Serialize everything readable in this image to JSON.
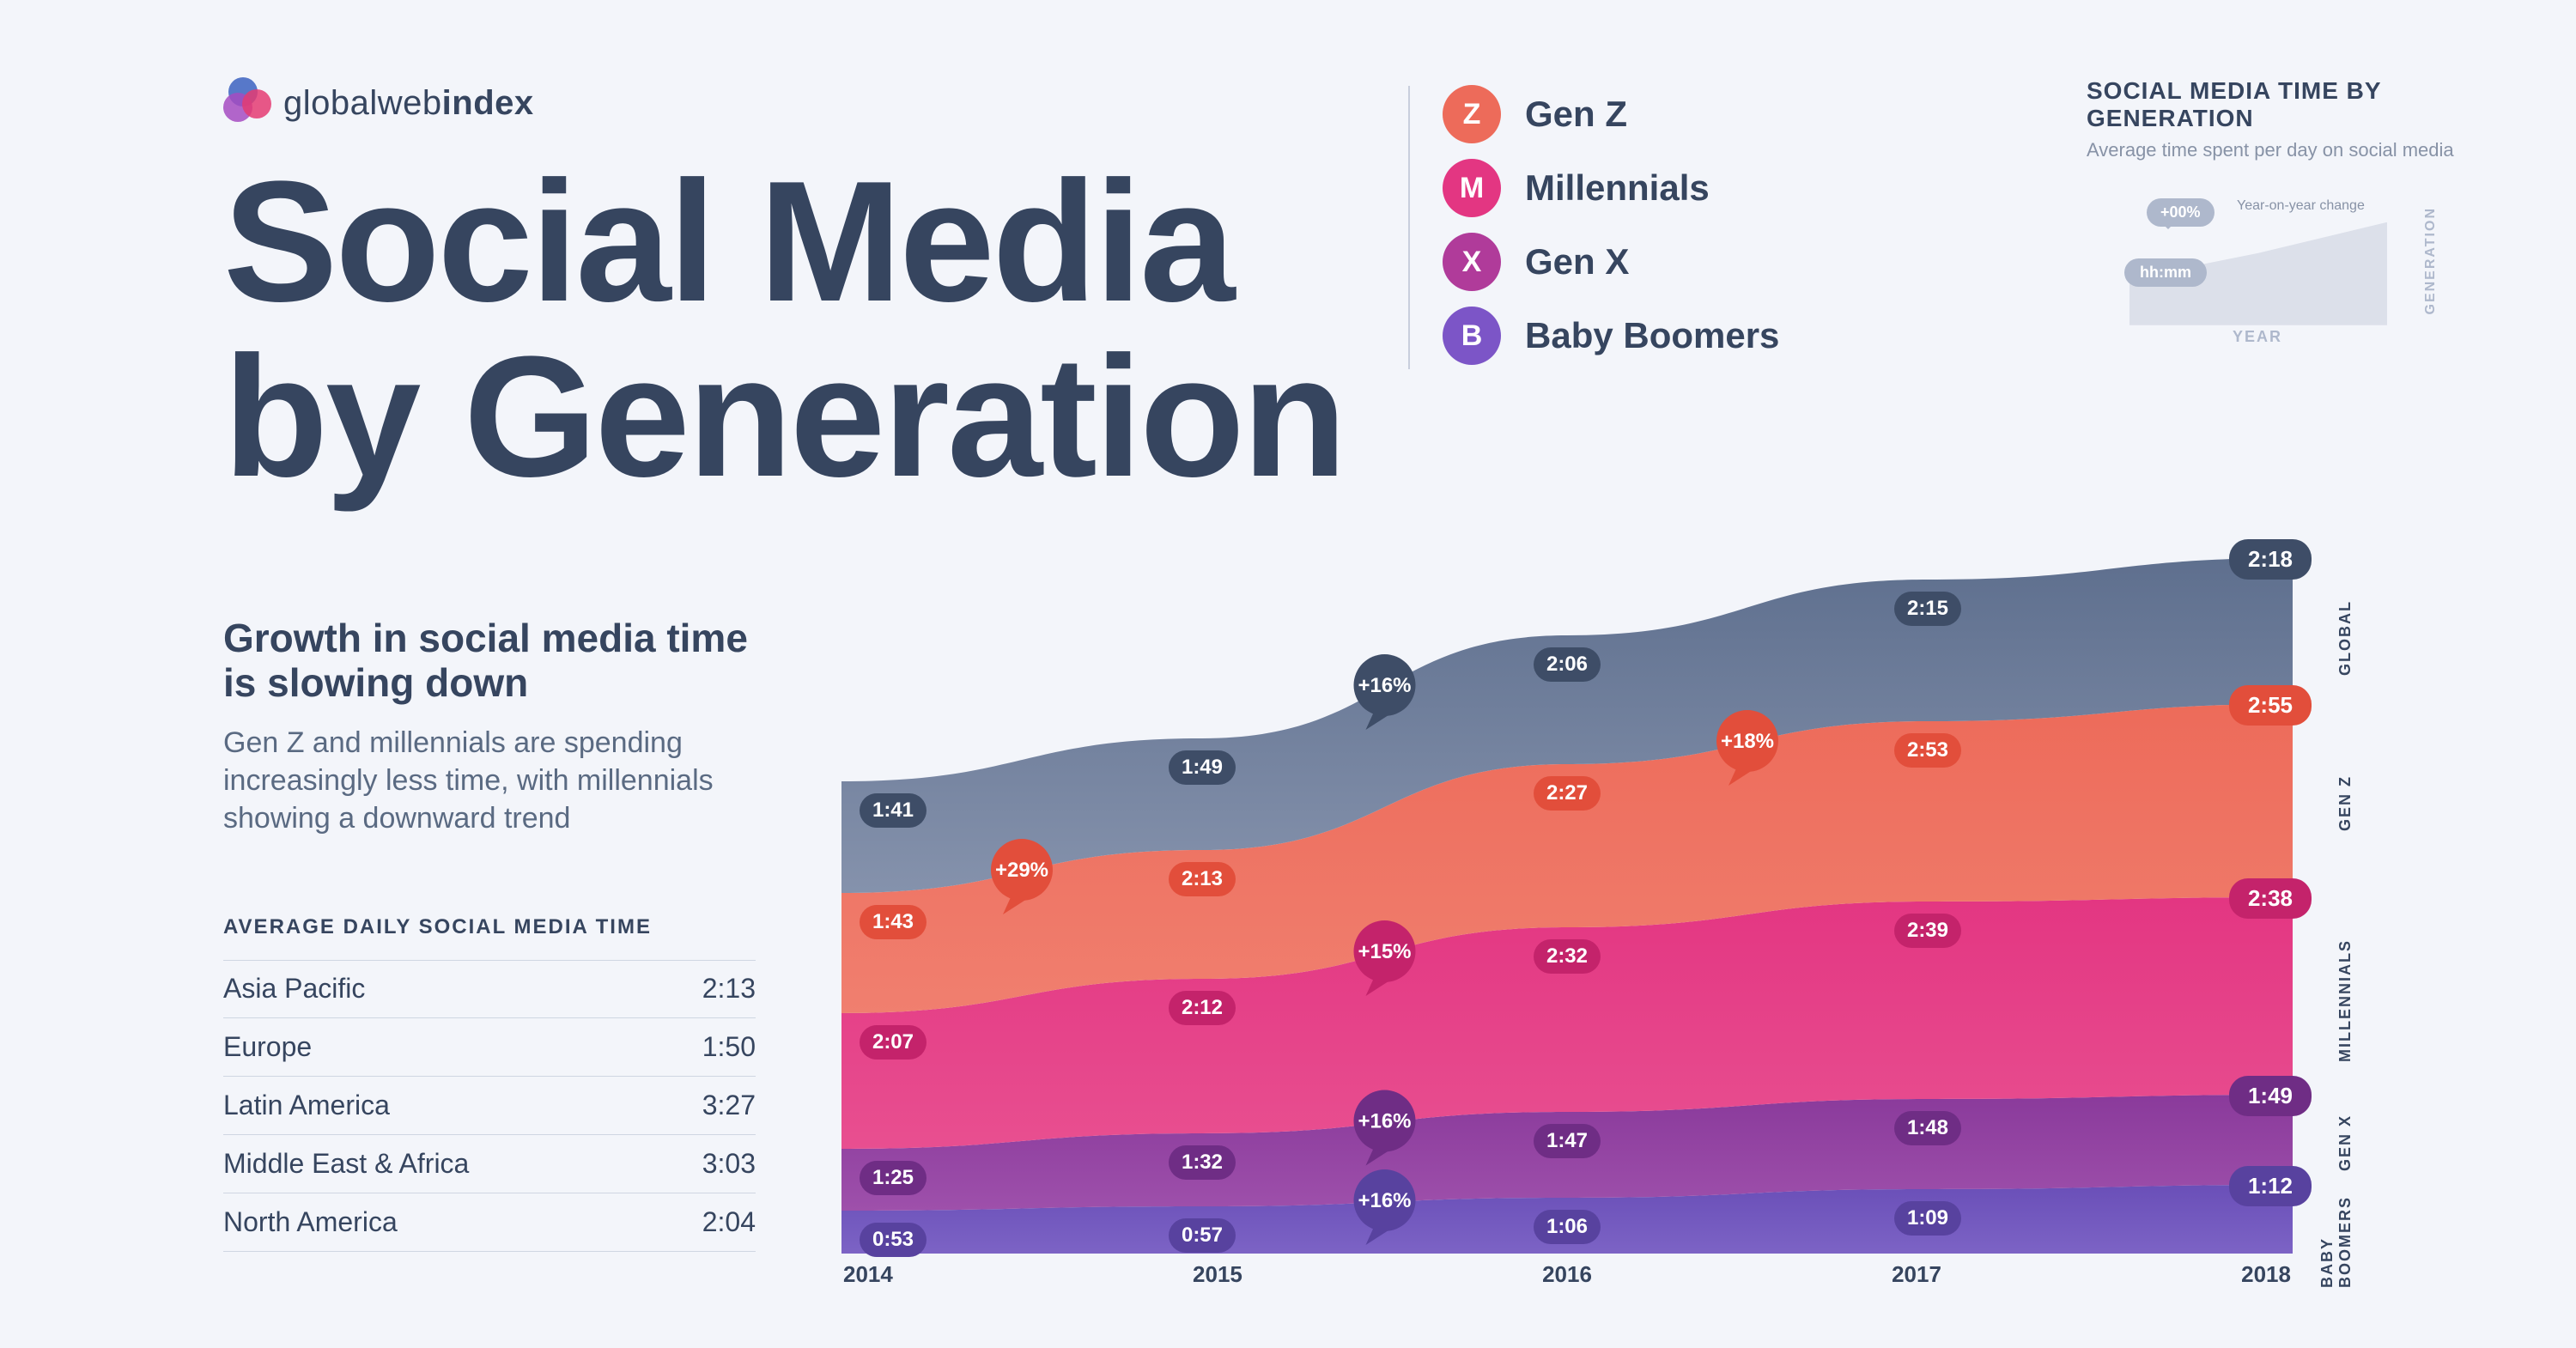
{
  "brand": {
    "name_light": "globalweb",
    "name_bold": "index",
    "dots": [
      "#3b62c0",
      "#a44bc1",
      "#e43b72"
    ]
  },
  "title_l1": "Social Media",
  "title_l2": "by Generation",
  "subhead": {
    "heading": "Growth in social media time is slowing down",
    "body": "Gen Z and millennials are spending increasingly less time, with millennials showing a downward trend"
  },
  "table": {
    "title": "AVERAGE DAILY SOCIAL MEDIA TIME",
    "rows": [
      {
        "region": "Asia Pacific",
        "time": "2:13"
      },
      {
        "region": "Europe",
        "time": "1:50"
      },
      {
        "region": "Latin America",
        "time": "3:27"
      },
      {
        "region": "Middle East & Africa",
        "time": "3:03"
      },
      {
        "region": "North America",
        "time": "2:04"
      }
    ]
  },
  "legend": {
    "items": [
      {
        "letter": "Z",
        "label": "Gen Z",
        "color": "#ed6b5a"
      },
      {
        "letter": "M",
        "label": "Millennials",
        "color": "#e33682"
      },
      {
        "letter": "X",
        "label": "Gen X",
        "color": "#b03b9a"
      },
      {
        "letter": "B",
        "label": "Baby Boomers",
        "color": "#7c55c7"
      }
    ]
  },
  "key": {
    "title": "SOCIAL MEDIA TIME BY GENERATION",
    "subtitle": "Average time spent per day on social media",
    "bubble": "+00%",
    "bubble_note": "Year-on-year change",
    "pill": "hh:mm",
    "year": "YEAR",
    "gen": "GENERATION"
  },
  "chart": {
    "type": "stacked-area",
    "background": "#f3f5fa",
    "years": [
      "2014",
      "2015",
      "2016",
      "2017",
      "2018"
    ],
    "x_positions": [
      0,
      420,
      845,
      1265,
      1690
    ],
    "series": [
      {
        "id": "global",
        "label": "GLOBAL",
        "color_top": "#5e6f8e",
        "color_bot": "#8592ac",
        "pill_color": "#3e4d67",
        "top_y": [
          350,
          300,
          180,
          115,
          90
        ],
        "values": [
          "1:41",
          "1:49",
          "2:06",
          "2:15",
          "2:18"
        ],
        "end_value": "2:18"
      },
      {
        "id": "genz",
        "label": "GEN Z",
        "color_top": "#ed6b5a",
        "color_bot": "#f07f6f",
        "pill_color": "#e24e3b",
        "top_y": [
          480,
          430,
          330,
          280,
          260
        ],
        "values": [
          "1:43",
          "2:13",
          "2:27",
          "2:53",
          "2:55"
        ],
        "end_value": "2:55"
      },
      {
        "id": "millennials",
        "label": "MILLENNIALS",
        "color_top": "#e33682",
        "color_bot": "#e84f90",
        "pill_color": "#c4236b",
        "top_y": [
          620,
          580,
          520,
          490,
          485
        ],
        "values": [
          "2:07",
          "2:12",
          "2:32",
          "2:39",
          "2:38"
        ],
        "end_value": "2:38"
      },
      {
        "id": "genx",
        "label": "GEN X",
        "color_top": "#8a3a9b",
        "color_bot": "#9e50ab",
        "pill_color": "#6f2d85",
        "top_y": [
          778,
          760,
          735,
          720,
          715
        ],
        "values": [
          "1:25",
          "1:32",
          "1:47",
          "1:48",
          "1:49"
        ],
        "end_value": "1:49"
      },
      {
        "id": "boomers",
        "label": "BABY BOOMERS",
        "color_top": "#6a4fb8",
        "color_bot": "#7c63c5",
        "pill_color": "#58429f",
        "top_y": [
          850,
          845,
          835,
          825,
          820
        ],
        "values": [
          "0:53",
          "0:57",
          "1:06",
          "1:09",
          "1:12"
        ],
        "end_value": "1:12"
      }
    ],
    "floor_y": 900,
    "bubbles": [
      {
        "series": "genz",
        "after_year_index": 0,
        "text": "+29%"
      },
      {
        "series": "global",
        "after_year_index": 1,
        "text": "+16%"
      },
      {
        "series": "millennials",
        "after_year_index": 1,
        "text": "+15%"
      },
      {
        "series": "genx",
        "after_year_index": 1,
        "text": "+16%"
      },
      {
        "series": "boomers",
        "after_year_index": 1,
        "text": "+16%"
      },
      {
        "series": "genz",
        "after_year_index": 2,
        "text": "+18%"
      }
    ],
    "pill_fontsize": 24,
    "label_fontsize": 18,
    "axis_fontsize": 26
  }
}
